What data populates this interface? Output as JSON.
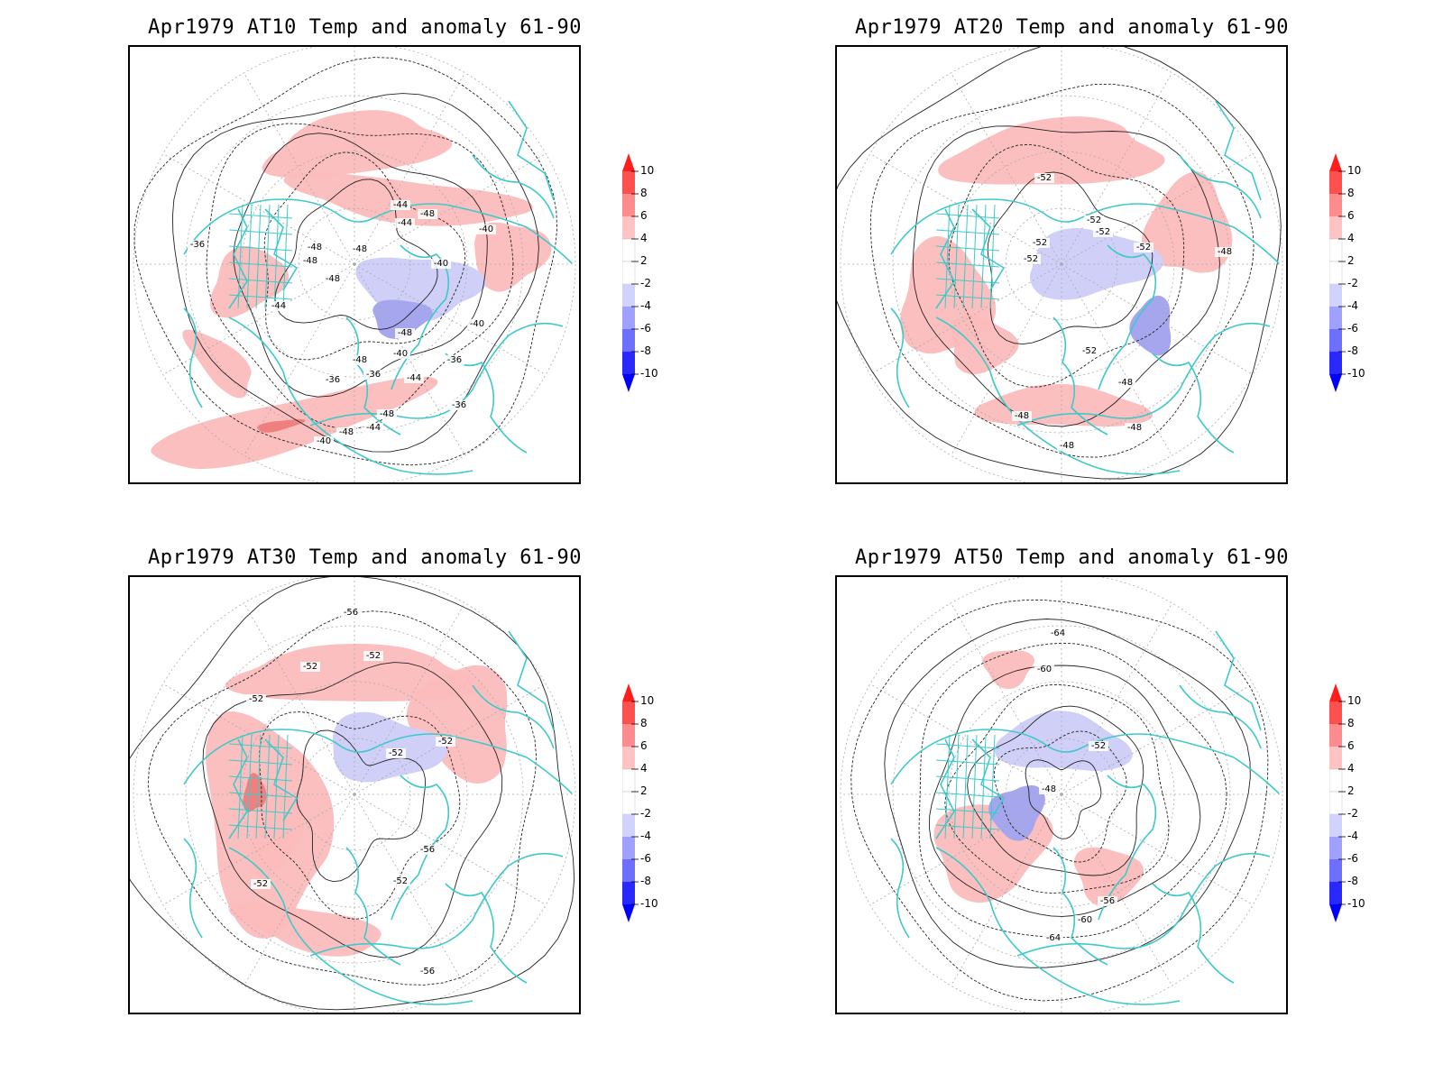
{
  "panels": [
    {
      "title": "Apr1979 AT10 Temp and anomaly 61-90",
      "contour_labels": [
        "-36",
        "-40",
        "-44",
        "-48",
        "-44",
        "-48",
        "-48",
        "-48",
        "-40",
        "-44",
        "-48",
        "-48",
        "-40",
        "-36",
        "-36",
        "-36",
        "-40",
        "-44",
        "-48",
        "-48",
        "-44",
        "-48",
        "-40",
        "-36"
      ],
      "warm_areas": 6,
      "cold_areas": 2
    },
    {
      "title": "Apr1979 AT20 Temp and anomaly 61-90",
      "contour_labels": [
        "-52",
        "-52",
        "-52",
        "-52",
        "-52",
        "-52",
        "-48",
        "-48",
        "-52",
        "-48",
        "-48",
        "-48"
      ],
      "warm_areas": 5,
      "cold_areas": 2
    },
    {
      "title": "Apr1979 AT30 Temp and anomaly 61-90",
      "contour_labels": [
        "-56",
        "-52",
        "-52",
        "-52",
        "-52",
        "-52",
        "-56",
        "-52",
        "-52",
        "-56"
      ],
      "warm_areas": 5,
      "cold_areas": 1
    },
    {
      "title": "Apr1979 AT50 Temp and anomaly 61-90",
      "contour_labels": [
        "-64",
        "-60",
        "-52",
        "-48",
        "-56",
        "-60",
        "-64"
      ],
      "warm_areas": 3,
      "cold_areas": 2
    }
  ],
  "colorbar": {
    "levels": [
      "10",
      "8",
      "6",
      "4",
      "2",
      "-2",
      "-4",
      "-6",
      "-8",
      "-10"
    ],
    "colors": [
      "#ff1e1e",
      "#ff5050",
      "#ff8c8c",
      "#ffc3c3",
      "#ffffff",
      "#ffffff",
      "#d2d2ff",
      "#a0a0ff",
      "#6e6eff",
      "#2828ff",
      "#0000ff"
    ]
  },
  "styles": {
    "coast_color": "#3fc9c9",
    "warm_fill": "#fcbcbc",
    "warm_strong": "#f08080",
    "cold_fill": "#cfcff8",
    "cold_strong": "#a6a6ef",
    "contour_color": "#222222",
    "grid_color": "#aaaaaa"
  }
}
